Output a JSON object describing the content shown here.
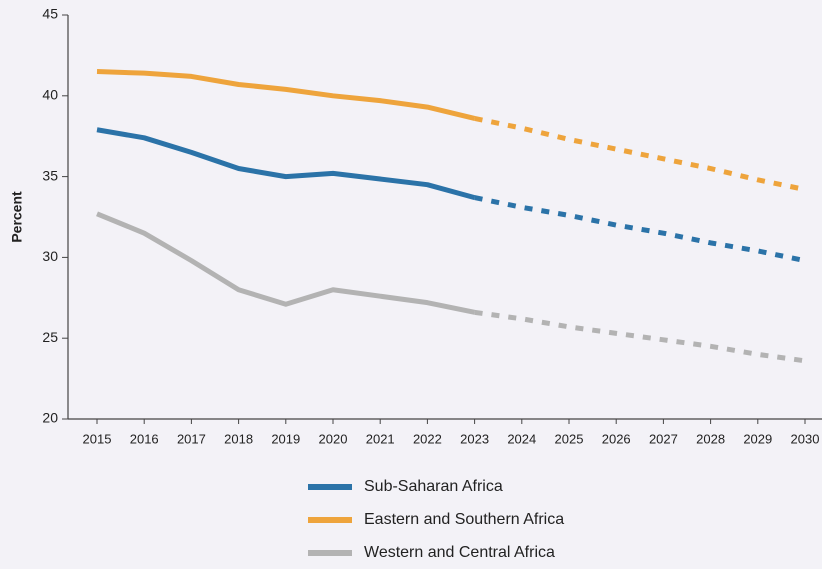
{
  "chart_data": {
    "type": "line",
    "y_label": "Percent",
    "x": [
      2015,
      2016,
      2017,
      2018,
      2019,
      2020,
      2021,
      2022,
      2023,
      2024,
      2025,
      2026,
      2027,
      2028,
      2029,
      2030
    ],
    "xlim": [
      2015,
      2030
    ],
    "xticks": [
      2015,
      2016,
      2017,
      2018,
      2019,
      2020,
      2021,
      2022,
      2023,
      2024,
      2025,
      2026,
      2027,
      2028,
      2029,
      2030
    ],
    "ylim": [
      20,
      45
    ],
    "yticks": [
      20,
      25,
      30,
      35,
      40,
      45
    ],
    "projection_start": 2023,
    "series": [
      {
        "name": "Sub-Saharan Africa",
        "color": "#2b73a8",
        "values": [
          37.9,
          37.4,
          36.5,
          35.5,
          35.0,
          35.2,
          34.85,
          34.5,
          33.7,
          33.1,
          32.6,
          32.0,
          31.5,
          30.9,
          30.4,
          29.8
        ]
      },
      {
        "name": "Eastern and Southern Africa",
        "color": "#eea43c",
        "values": [
          41.5,
          41.4,
          41.2,
          40.7,
          40.4,
          40.0,
          39.7,
          39.3,
          38.6,
          38.0,
          37.3,
          36.7,
          36.1,
          35.5,
          34.8,
          34.2
        ]
      },
      {
        "name": "Western and Central Africa",
        "color": "#b3b3b3",
        "values": [
          32.7,
          31.5,
          29.8,
          28.0,
          27.1,
          28.0,
          27.6,
          27.2,
          26.6,
          26.2,
          25.7,
          25.3,
          24.9,
          24.5,
          24.0,
          23.6
        ]
      }
    ]
  }
}
